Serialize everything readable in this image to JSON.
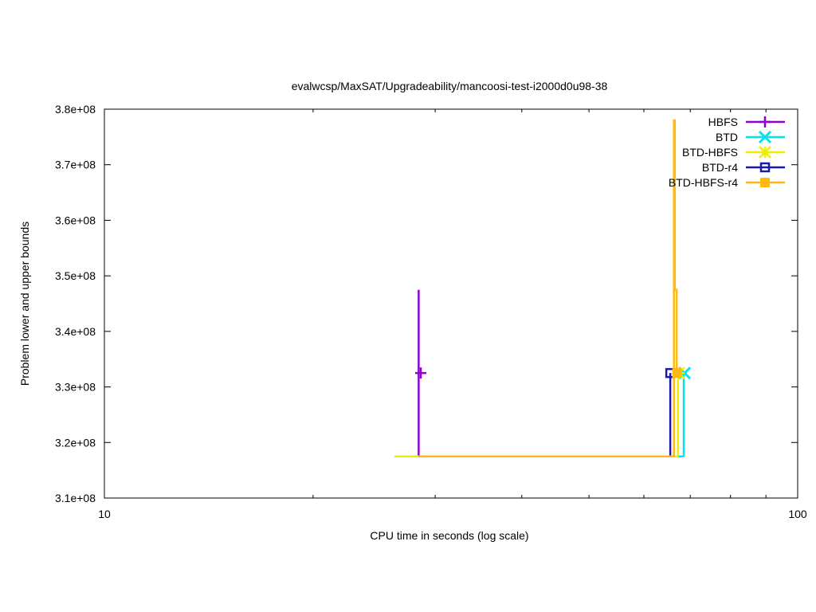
{
  "chart_data": {
    "type": "line",
    "title": "evalwcsp/MaxSAT/Upgradeability/mancoosi-test-i2000d0u98-38",
    "xlabel": "CPU time in seconds (log scale)",
    "ylabel": "Problem lower and upper bounds",
    "xscale": "log",
    "xlim": [
      10,
      100
    ],
    "ylim": [
      310000000,
      380000000
    ],
    "x_ticks": [
      {
        "value": 10,
        "label": "10"
      },
      {
        "value": 100,
        "label": "100"
      }
    ],
    "y_ticks": [
      {
        "value": 310000000,
        "label": "3.1e+08"
      },
      {
        "value": 320000000,
        "label": "3.2e+08"
      },
      {
        "value": 330000000,
        "label": "3.3e+08"
      },
      {
        "value": 340000000,
        "label": "3.4e+08"
      },
      {
        "value": 350000000,
        "label": "3.5e+08"
      },
      {
        "value": 360000000,
        "label": "3.6e+08"
      },
      {
        "value": 370000000,
        "label": "3.7e+08"
      },
      {
        "value": 380000000,
        "label": "3.8e+08"
      }
    ],
    "grid": false,
    "legend_position": "top-right",
    "series": [
      {
        "name": "HBFS",
        "color": "#9400d3",
        "marker": "plus",
        "lower": [
          [
            28.4,
            317500000
          ]
        ],
        "upper": [
          [
            28.4,
            347500000
          ],
          [
            28.4,
            332500000
          ]
        ],
        "final": [
          28.6,
          332500000
        ]
      },
      {
        "name": "BTD",
        "color": "#00e5ee",
        "marker": "cross",
        "lower": [
          [
            26.2,
            317500000
          ],
          [
            68.5,
            317500000
          ]
        ],
        "upper": [
          [
            68.5,
            332500000
          ]
        ],
        "final": [
          68.7,
          332500000
        ]
      },
      {
        "name": "BTD-HBFS",
        "color": "#eeee00",
        "marker": "star",
        "lower": [
          [
            26.2,
            317500000
          ],
          [
            67.2,
            317500000
          ]
        ],
        "upper": [
          [
            67.2,
            332500000
          ]
        ],
        "final": [
          67.4,
          332500000
        ]
      },
      {
        "name": "BTD-r4",
        "color": "#1a1aaa",
        "marker": "open-square",
        "lower": [
          [
            28.4,
            317500000
          ],
          [
            65.5,
            317500000
          ]
        ],
        "upper": [
          [
            65.5,
            332500000
          ]
        ],
        "final": [
          65.5,
          332500000
        ]
      },
      {
        "name": "BTD-HBFS-r4",
        "color": "#ffb90f",
        "marker": "filled-square",
        "lower": [
          [
            28.4,
            317500000
          ],
          [
            66.3,
            317500000
          ]
        ],
        "upper": [
          [
            66.3,
            378000000
          ],
          [
            66.5,
            362500000
          ],
          [
            66.5,
            347500000
          ],
          [
            66.9,
            332500000
          ]
        ],
        "final": [
          67.0,
          332500000
        ]
      }
    ]
  }
}
